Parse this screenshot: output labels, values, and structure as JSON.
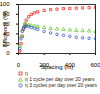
{
  "chart_data": {
    "type": "scatter",
    "x_label": "Spacing (m)",
    "y_label": "Efficiency (%)",
    "xlim": [
      0,
      600
    ],
    "xticks": [
      0,
      200,
      400,
      600
    ],
    "ylim": [
      0,
      100
    ],
    "yticks": [
      0,
      20,
      40,
      60,
      80,
      100
    ],
    "x": [
      10,
      20,
      30,
      40,
      50,
      60,
      80,
      100,
      125,
      150,
      200,
      250,
      300,
      350,
      400,
      450,
      500,
      550,
      600
    ],
    "series": [
      {
        "name": "η",
        "color": "#e8312a",
        "marker": "square",
        "values": [
          5,
          20,
          35,
          50,
          60,
          68,
          75,
          80,
          83,
          85,
          88,
          89.5,
          90.5,
          91.5,
          92,
          92.5,
          93,
          93.5,
          94
        ]
      },
      {
        "name": "η 1 cycle per day over 20 years",
        "color": "#66cc33",
        "marker": "triangle",
        "values": [
          15,
          35,
          48,
          55,
          58,
          59,
          58,
          57,
          56,
          55,
          53,
          51,
          50,
          49,
          48,
          47,
          46.5,
          46,
          45
        ]
      },
      {
        "name": "η 3 cycles per day over 20 years",
        "color": "#3355cc",
        "marker": "circle",
        "values": [
          10,
          30,
          45,
          52,
          55,
          56,
          55,
          53,
          51,
          49,
          45,
          42,
          39,
          37,
          35,
          33,
          32,
          31,
          30
        ]
      }
    ],
    "legend": "bottom"
  }
}
